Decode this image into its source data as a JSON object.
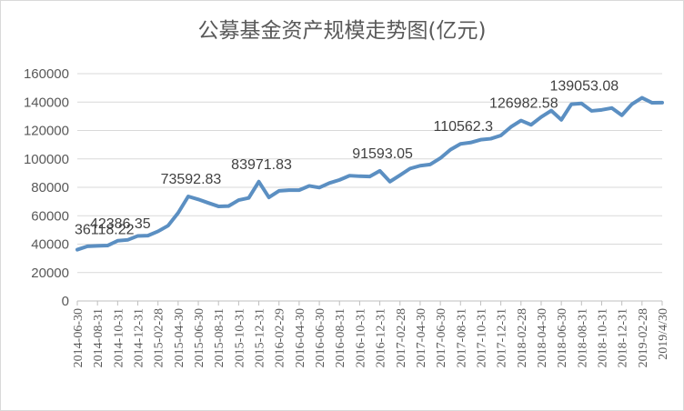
{
  "chart_data": {
    "type": "line",
    "title": "公募基金资产规模走势图(亿元)",
    "xlabel": "",
    "ylabel": "",
    "ylim": [
      0,
      160000
    ],
    "yticks": [
      "0",
      "20000",
      "40000",
      "60000",
      "80000",
      "100000",
      "120000",
      "140000",
      "160000"
    ],
    "grid": true,
    "legend": "none",
    "line_color": "#5b8fc2",
    "x_tick_labels": [
      "2014-06-30",
      "2014-08-31",
      "2014-10-31",
      "2014-12-31",
      "2015-02-28",
      "2015-04-30",
      "2015-06-30",
      "2015-08-31",
      "2015-10-31",
      "2015-12-31",
      "2016-02-29",
      "2016-04-30",
      "2016-06-30",
      "2016-08-31",
      "2016-10-31",
      "2016-12-31",
      "2017-02-28",
      "2017-04-30",
      "2017-06-30",
      "2017-08-31",
      "2017-10-31",
      "2017-12-31",
      "2018-02-28",
      "2018-04-30",
      "2018-06-30",
      "2018-08-31",
      "2018-10-31",
      "2018-12-31",
      "2019-02-28",
      "2019/4/30"
    ],
    "series": [
      {
        "values": [
          36118.22,
          38500,
          38800,
          39000,
          42386.35,
          43000,
          45800,
          46000,
          49000,
          53000,
          62000,
          73592.83,
          71500,
          69000,
          66600,
          66800,
          71000,
          72500,
          83971.83,
          72900,
          77500,
          78000,
          78000,
          81000,
          79800,
          83000,
          85200,
          88200,
          87800,
          87600,
          91593.05,
          84000,
          88500,
          93200,
          95200,
          96100,
          100500,
          106500,
          110562.3,
          111500,
          113500,
          114200,
          116500,
          122500,
          126982.58,
          124000,
          129500,
          134000,
          127500,
          138500,
          139053.08,
          133800,
          134500,
          135800,
          130700,
          138500,
          143000,
          139500,
          139600
        ]
      }
    ],
    "annotations": [
      {
        "index": 0,
        "text": "36118.22"
      },
      {
        "index": 4,
        "text": "42386.35"
      },
      {
        "index": 11,
        "text": "73592.83"
      },
      {
        "index": 18,
        "text": "83971.83"
      },
      {
        "index": 30,
        "text": "91593.05"
      },
      {
        "index": 38,
        "text": "110562.3"
      },
      {
        "index": 44,
        "text": "126982.58"
      },
      {
        "index": 50,
        "text": "139053.08"
      }
    ]
  }
}
